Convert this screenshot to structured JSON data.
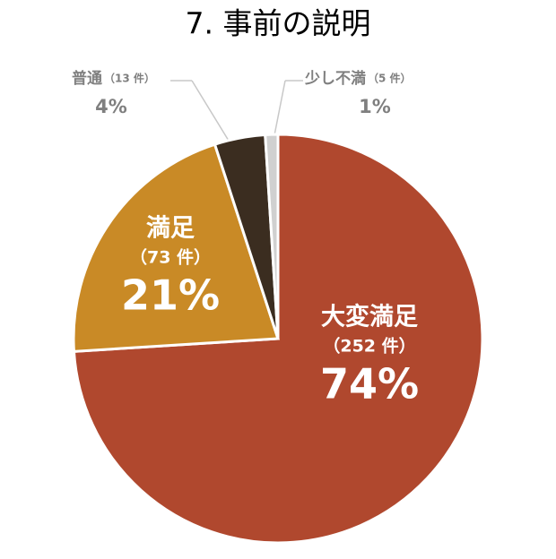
{
  "chart_data": {
    "type": "pie",
    "title": "7. 事前の説明",
    "categories": [
      "大変満足",
      "満足",
      "普通",
      "少し不満"
    ],
    "values": [
      74,
      21,
      4,
      1
    ],
    "value_labels": [
      "74%",
      "21%",
      "4%",
      "1%"
    ],
    "count_labels": [
      "（252 件）",
      "（73 件）",
      "（13 件）",
      "（5 件）"
    ],
    "colors": [
      "#b0482e",
      "#c98a26",
      "#3b2d20",
      "#d0d0d0"
    ]
  }
}
